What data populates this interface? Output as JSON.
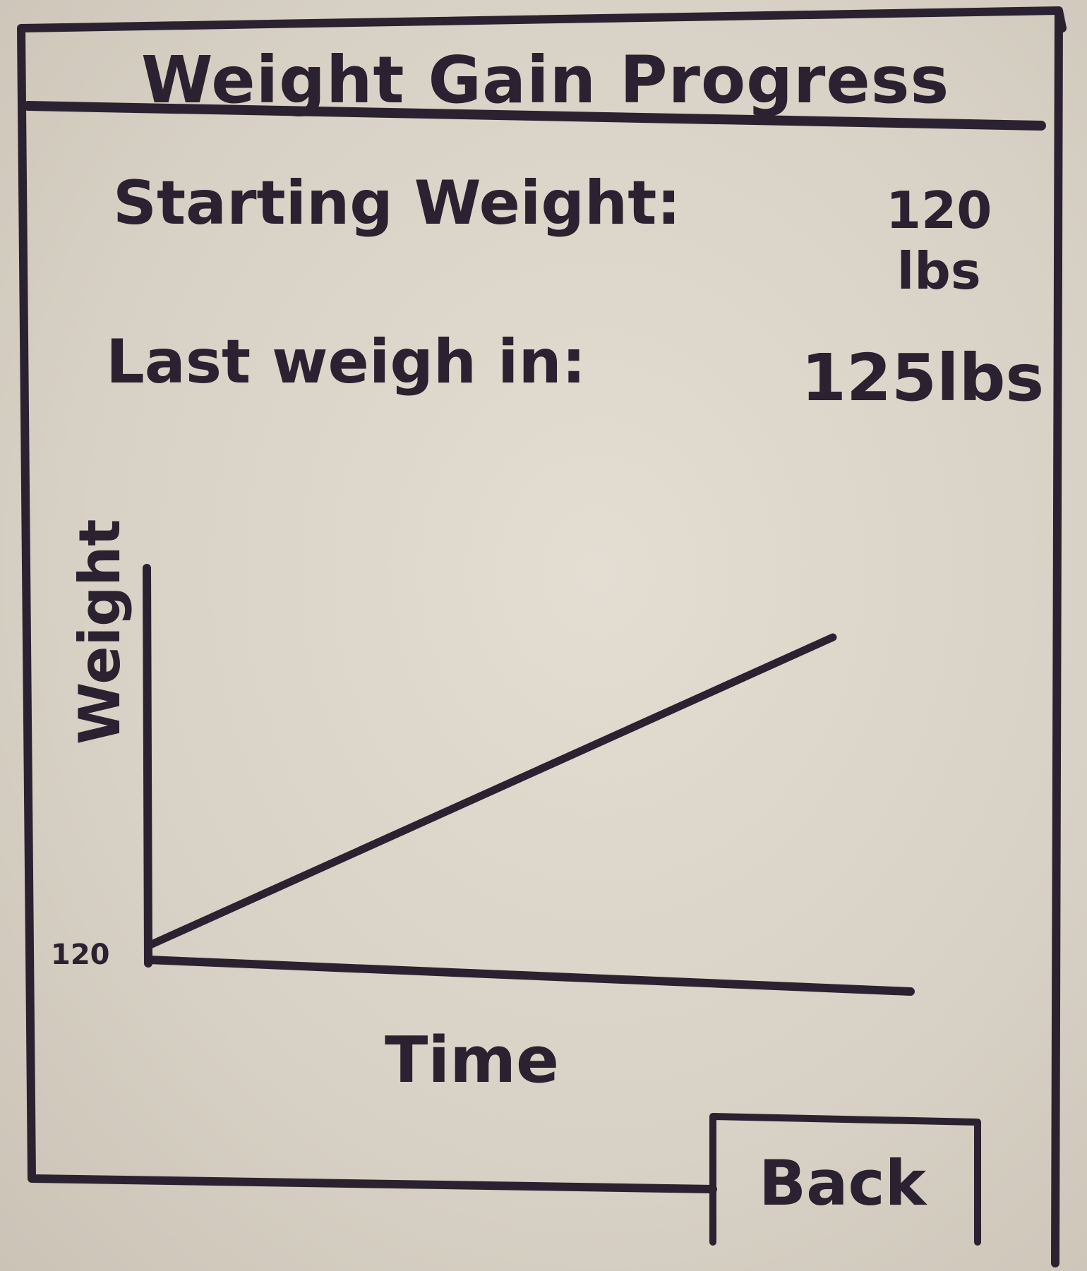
{
  "screen": {
    "title": "Weight Gain Progress"
  },
  "stats": {
    "starting_label": "Starting Weight:",
    "starting_value_number": "120",
    "starting_value_unit": "lbs",
    "last_label": "Last weigh in:",
    "last_value": "125lbs"
  },
  "chart_data": {
    "type": "line",
    "xlabel": "Time",
    "ylabel": "Weight",
    "y_tick_labels": [
      "120"
    ],
    "series": [
      {
        "x": [
          0,
          1
        ],
        "y": [
          120,
          125
        ]
      }
    ]
  },
  "actions": {
    "back_label": "Back"
  },
  "colors": {
    "ink": "#2a2230",
    "paper": "#d9d2c6"
  }
}
